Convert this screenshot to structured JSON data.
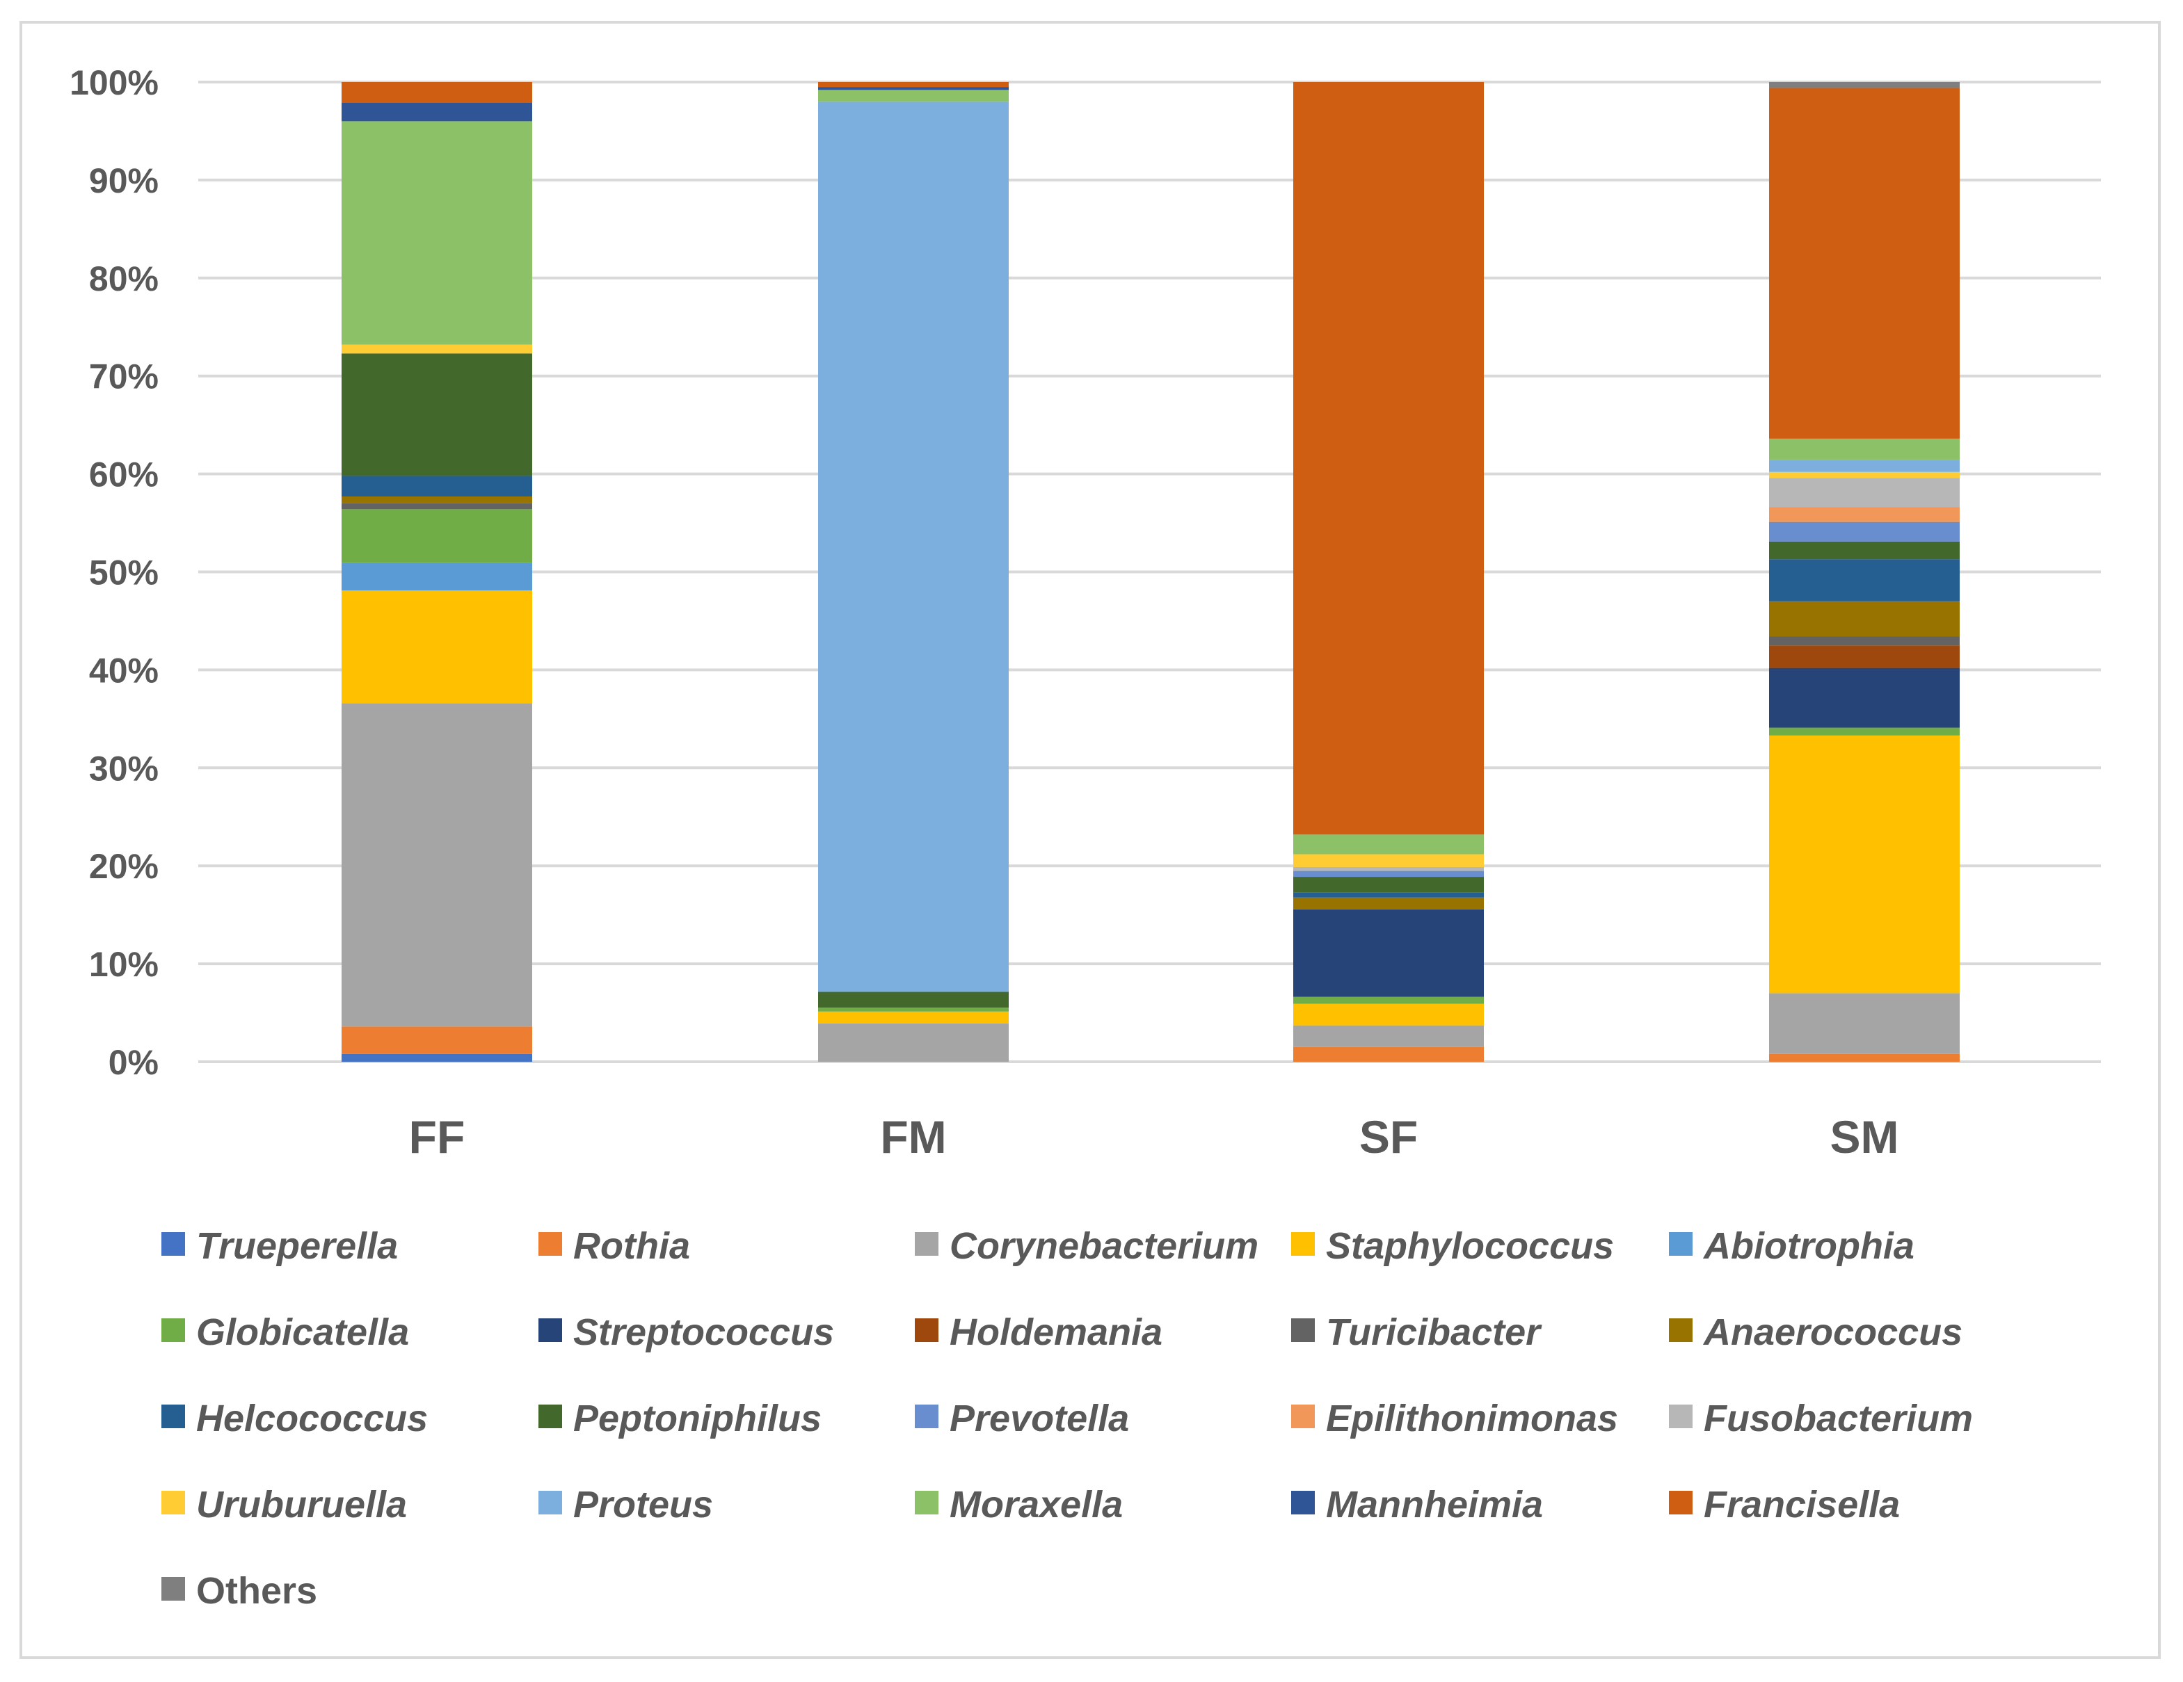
{
  "chart_data": {
    "type": "bar",
    "stacked": true,
    "normalized": true,
    "categories": [
      "FF",
      "FM",
      "SF",
      "SM"
    ],
    "yticks": [
      "0%",
      "10%",
      "20%",
      "30%",
      "40%",
      "50%",
      "60%",
      "70%",
      "80%",
      "90%",
      "100%"
    ],
    "ylim": [
      0,
      100
    ],
    "grid": true,
    "legend_position": "bottom",
    "series": [
      {
        "name": "Trueperella",
        "italic": true,
        "color": "#4472c4",
        "values": [
          0.8,
          0.0,
          0.0,
          0.0
        ]
      },
      {
        "name": "Rothia",
        "italic": true,
        "color": "#ed7d31",
        "values": [
          2.8,
          0.0,
          1.5,
          0.8
        ]
      },
      {
        "name": "Corynebacterium",
        "italic": true,
        "color": "#a5a5a5",
        "values": [
          33.0,
          3.9,
          2.2,
          6.2
        ]
      },
      {
        "name": "Staphylococcus",
        "italic": true,
        "color": "#ffc000",
        "values": [
          11.5,
          1.2,
          2.2,
          26.3
        ]
      },
      {
        "name": "Abiotrophia",
        "italic": true,
        "color": "#5b9bd5",
        "values": [
          2.8,
          0.0,
          0.0,
          0.0
        ]
      },
      {
        "name": "Globicatella",
        "italic": true,
        "color": "#70ad47",
        "values": [
          5.5,
          0.4,
          0.7,
          0.8
        ]
      },
      {
        "name": "Streptococcus",
        "italic": true,
        "color": "#264478",
        "values": [
          0.0,
          0.0,
          8.9,
          6.1
        ]
      },
      {
        "name": "Holdemania",
        "italic": true,
        "color": "#9e480e",
        "values": [
          0.0,
          0.0,
          0.0,
          2.3
        ]
      },
      {
        "name": "Turicibacter",
        "italic": true,
        "color": "#636363",
        "values": [
          0.6,
          0.0,
          0.0,
          0.9
        ]
      },
      {
        "name": "Anaerococcus",
        "italic": true,
        "color": "#997300",
        "values": [
          0.7,
          0.0,
          1.2,
          3.6
        ]
      },
      {
        "name": "Helcococcus",
        "italic": true,
        "color": "#255e91",
        "values": [
          2.1,
          0.0,
          0.5,
          4.3
        ]
      },
      {
        "name": "Peptoniphilus",
        "italic": true,
        "color": "#43682b",
        "values": [
          12.5,
          1.6,
          1.6,
          1.8
        ]
      },
      {
        "name": "Prevotella",
        "italic": true,
        "color": "#698ed0",
        "values": [
          0.0,
          0.0,
          0.6,
          2.0
        ]
      },
      {
        "name": "Epilithonimonas",
        "italic": true,
        "color": "#f1975a",
        "values": [
          0.0,
          0.0,
          0.0,
          1.5
        ]
      },
      {
        "name": "Fusobacterium",
        "italic": true,
        "color": "#b7b7b7",
        "values": [
          0.0,
          0.0,
          0.4,
          3.0
        ]
      },
      {
        "name": "Uruburuella",
        "italic": true,
        "color": "#ffcd33",
        "values": [
          0.9,
          0.0,
          1.3,
          0.6
        ]
      },
      {
        "name": "Proteus",
        "italic": true,
        "color": "#7cafdd",
        "values": [
          0.0,
          90.4,
          0.0,
          1.2
        ]
      },
      {
        "name": "Moraxella",
        "italic": true,
        "color": "#8cc168",
        "values": [
          22.8,
          1.2,
          2.0,
          2.2
        ]
      },
      {
        "name": "Mannheimia",
        "italic": true,
        "color": "#2f5597",
        "values": [
          1.9,
          0.3,
          0.0,
          0.0
        ]
      },
      {
        "name": "Francisella",
        "italic": true,
        "color": "#d05e12",
        "values": [
          2.1,
          0.5,
          76.5,
          35.8
        ]
      },
      {
        "name": "Others",
        "italic": false,
        "color": "#7f7f7f",
        "values": [
          0.0,
          0.0,
          0.0,
          0.6
        ]
      }
    ]
  }
}
